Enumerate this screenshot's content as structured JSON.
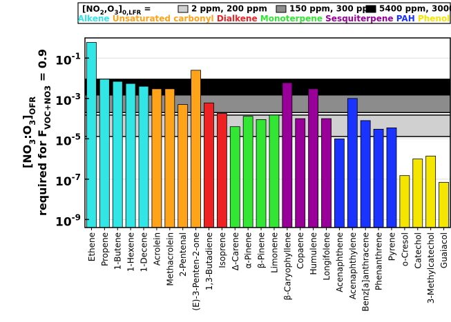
{
  "chart_data": {
    "type": "bar",
    "log_scale": true,
    "grid": true,
    "ylim": [
      4e-10,
      1
    ],
    "yticks": [
      {
        "value": 0.1,
        "label": "10",
        "exp": "-1"
      },
      {
        "value": 0.001,
        "label": "10",
        "exp": "-3"
      },
      {
        "value": 1e-05,
        "label": "10",
        "exp": "-5"
      },
      {
        "value": 1e-07,
        "label": "10",
        "exp": "-7"
      },
      {
        "value": 1e-09,
        "label": "10",
        "exp": "-9"
      }
    ],
    "ylabel_lines": [
      [
        {
          "text": "[NO"
        },
        {
          "text": "3",
          "sub": true
        },
        {
          "text": ":O"
        },
        {
          "text": "3",
          "sub": true
        },
        {
          "text": "]"
        },
        {
          "text": "OFR",
          "sub": true
        }
      ],
      [
        {
          "text": "required for F"
        },
        {
          "text": "VOC+NO3",
          "sub": true
        },
        {
          "text": " = 0.9"
        }
      ]
    ],
    "legend_title": [
      {
        "text": "[NO"
      },
      {
        "text": "2",
        "sub": true
      },
      {
        "text": ",O"
      },
      {
        "text": "3",
        "sub": true
      },
      {
        "text": "]"
      },
      {
        "text": "0,LFR",
        "sub": true
      },
      {
        "text": " ="
      }
    ],
    "bands": [
      {
        "name": "2 ppm, 200 ppm",
        "color": "#d0d0d0",
        "range": [
          1.3e-05,
          0.00015
        ]
      },
      {
        "name": "150 ppm, 300 ppm",
        "color": "#8c8c8c",
        "range": [
          0.0002,
          0.0015
        ]
      },
      {
        "name": "5400 ppm, 3000 ppm",
        "color": "#000000",
        "range": [
          0.0015,
          0.009
        ]
      }
    ],
    "series": [
      {
        "name": "Alkene",
        "color": "#33e6e6",
        "categories": [
          "Ethene",
          "Propene",
          "1-Butene",
          "1-Hexene",
          "1-Decene"
        ],
        "values": [
          0.6,
          0.009,
          0.007,
          0.0055,
          0.004
        ]
      },
      {
        "name": "Unsaturated carbonyl",
        "color": "#ffa31a",
        "categories": [
          "Acrolein",
          "Methacrolein",
          "2-Pentenal",
          "(E)-3-Penten-2-one"
        ],
        "values": [
          0.003,
          0.003,
          0.0005,
          0.025
        ]
      },
      {
        "name": "Dialkene",
        "color": "#ee2222",
        "categories": [
          "1,3-Butadiene",
          "Isoprene"
        ],
        "values": [
          0.0006,
          0.00018
        ]
      },
      {
        "name": "Monoterpene",
        "color": "#33e633",
        "categories": [
          "Δ-Carene",
          "α-Pinene",
          "β-Pinene",
          "Limonene"
        ],
        "values": [
          4e-05,
          0.00013,
          9e-05,
          0.00015
        ]
      },
      {
        "name": "Sesquiterpene",
        "color": "#990099",
        "categories": [
          "β-Caryophyllene",
          "Copaene",
          "Humulene",
          "Longifolene"
        ],
        "values": [
          0.006,
          0.0001,
          0.003,
          0.0001
        ]
      },
      {
        "name": "PAH",
        "color": "#1a33ff",
        "categories": [
          "Acenaphthene",
          "Acenaphthylene",
          "Benz[a]anthracene",
          "Phenanthrene",
          "Pyrene"
        ],
        "values": [
          1e-05,
          0.001,
          8e-05,
          3e-05,
          3.5e-05
        ]
      },
      {
        "name": "Phenol",
        "color": "#f5e600",
        "categories": [
          "o-Cresol",
          "Catechol",
          "3-Methylcatechol",
          "Guaiacol"
        ],
        "values": [
          1.5e-07,
          1e-06,
          1.4e-06,
          7e-08
        ]
      }
    ]
  }
}
